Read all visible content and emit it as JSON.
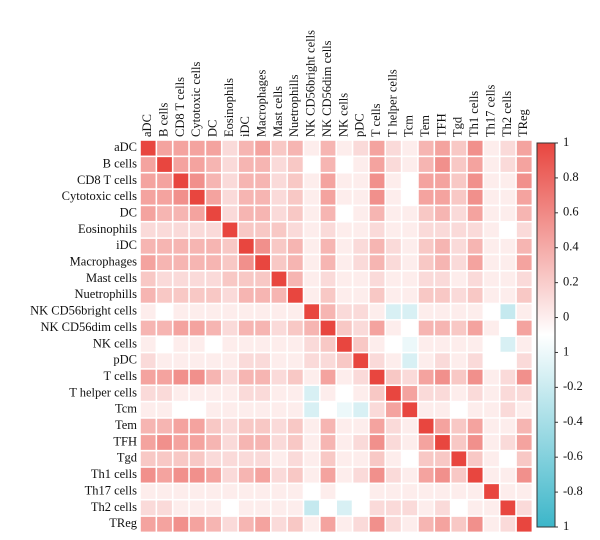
{
  "chart_data": {
    "type": "heatmap",
    "categories": [
      "aDC",
      "B cells",
      "CD8 T cells",
      "Cytotoxic cells",
      "DC",
      "Eosinophils",
      "iDC",
      "Macrophages",
      "Mast cells",
      "Nuetrophills",
      "NK CD56bright cells",
      "NK CD56dim cells",
      "NK cells",
      "pDC",
      "T cells",
      "T helper cells",
      "Tcm",
      "Tem",
      "TFH",
      "Tgd",
      "Th1 cells",
      "Th17 cells",
      "Th2 cells",
      "TReg"
    ],
    "values": [
      [
        1,
        0.5,
        0.5,
        0.5,
        0.5,
        0.2,
        0.4,
        0.5,
        0.3,
        0.4,
        0.1,
        0.4,
        0.1,
        0.2,
        0.5,
        0.2,
        0.1,
        0.4,
        0.5,
        0.3,
        0.6,
        0.1,
        0.2,
        0.5
      ],
      [
        0.5,
        1,
        0.5,
        0.5,
        0.4,
        0.2,
        0.4,
        0.4,
        0.2,
        0.3,
        0,
        0.4,
        0,
        0.1,
        0.5,
        0.2,
        0.1,
        0.4,
        0.6,
        0.3,
        0.5,
        0.1,
        0.2,
        0.5
      ],
      [
        0.5,
        0.5,
        1,
        0.6,
        0.4,
        0.2,
        0.4,
        0.4,
        0.2,
        0.3,
        0.1,
        0.5,
        0.1,
        0.1,
        0.6,
        0.1,
        0,
        0.5,
        0.5,
        0.3,
        0.6,
        0.1,
        0.1,
        0.6
      ],
      [
        0.5,
        0.5,
        0.6,
        1,
        0.5,
        0.2,
        0.4,
        0.4,
        0.2,
        0.3,
        0.1,
        0.5,
        0.1,
        0.1,
        0.6,
        0.1,
        0,
        0.5,
        0.5,
        0.3,
        0.6,
        0.1,
        0.1,
        0.5
      ],
      [
        0.5,
        0.4,
        0.4,
        0.5,
        1,
        0.2,
        0.4,
        0.4,
        0.2,
        0.3,
        0.1,
        0.4,
        0,
        0.1,
        0.4,
        0.1,
        0.1,
        0.3,
        0.4,
        0.2,
        0.5,
        0.1,
        0.1,
        0.4
      ],
      [
        0.2,
        0.2,
        0.2,
        0.2,
        0.2,
        1,
        0.3,
        0.3,
        0.3,
        0.2,
        0.1,
        0.2,
        0.1,
        0.1,
        0.2,
        0.1,
        0.1,
        0.2,
        0.2,
        0.2,
        0.2,
        0.1,
        0,
        0.2
      ],
      [
        0.4,
        0.4,
        0.4,
        0.4,
        0.4,
        0.3,
        1,
        0.6,
        0.3,
        0.4,
        0.1,
        0.4,
        0.1,
        0.2,
        0.4,
        0.2,
        0.1,
        0.3,
        0.4,
        0.2,
        0.4,
        0.1,
        0.1,
        0.4
      ],
      [
        0.5,
        0.4,
        0.4,
        0.4,
        0.4,
        0.3,
        0.6,
        1,
        0.3,
        0.4,
        0.1,
        0.4,
        0.1,
        0.2,
        0.4,
        0.2,
        0.1,
        0.3,
        0.4,
        0.2,
        0.5,
        0.1,
        0.1,
        0.5
      ],
      [
        0.3,
        0.2,
        0.2,
        0.2,
        0.2,
        0.3,
        0.3,
        0.3,
        1,
        0.4,
        0.1,
        0.2,
        0.1,
        0.1,
        0.2,
        0.1,
        0.1,
        0.2,
        0.2,
        0.1,
        0.2,
        0.1,
        0.1,
        0.2
      ],
      [
        0.4,
        0.3,
        0.3,
        0.3,
        0.3,
        0.2,
        0.4,
        0.4,
        0.4,
        1,
        0.1,
        0.3,
        0.1,
        0.1,
        0.3,
        0.1,
        0.1,
        0.3,
        0.3,
        0.2,
        0.3,
        0.1,
        0.1,
        0.3
      ],
      [
        0.1,
        0,
        0.1,
        0.1,
        0.1,
        0.1,
        0.1,
        0.1,
        0.1,
        0.1,
        1,
        0.4,
        0.2,
        0.2,
        0.1,
        -0.2,
        -0.2,
        0.1,
        0.1,
        0.1,
        0.1,
        0,
        -0.3,
        0.1
      ],
      [
        0.4,
        0.4,
        0.5,
        0.5,
        0.4,
        0.2,
        0.4,
        0.4,
        0.2,
        0.3,
        0.4,
        1,
        0.3,
        0.2,
        0.5,
        0.1,
        0,
        0.4,
        0.4,
        0.3,
        0.5,
        0.1,
        0,
        0.5
      ],
      [
        0.1,
        0,
        0.1,
        0.1,
        0,
        0.1,
        0.1,
        0.1,
        0.1,
        0.1,
        0.2,
        0.3,
        1,
        0.3,
        0.1,
        0,
        -0.1,
        0.1,
        0.1,
        0.1,
        0.1,
        0,
        -0.2,
        0.1
      ],
      [
        0.2,
        0.1,
        0.1,
        0.1,
        0.1,
        0.1,
        0.2,
        0.2,
        0.1,
        0.1,
        0.2,
        0.2,
        0.3,
        1,
        0.2,
        0.1,
        -0.2,
        0.1,
        0.2,
        0.1,
        0.2,
        0,
        0,
        0.2
      ],
      [
        0.5,
        0.5,
        0.6,
        0.6,
        0.4,
        0.2,
        0.4,
        0.4,
        0.2,
        0.3,
        0.1,
        0.5,
        0.1,
        0.2,
        1,
        0.3,
        0.2,
        0.5,
        0.6,
        0.3,
        0.6,
        0.1,
        0.2,
        0.6
      ],
      [
        0.2,
        0.2,
        0.1,
        0.1,
        0.1,
        0.1,
        0.2,
        0.2,
        0.1,
        0.1,
        -0.2,
        0.1,
        0,
        0.1,
        0.3,
        1,
        0.5,
        0.2,
        0.2,
        0.1,
        0.2,
        0.1,
        0.2,
        0.2
      ],
      [
        0.1,
        0.1,
        0,
        0,
        0.1,
        0.1,
        0.1,
        0.1,
        0.1,
        0.1,
        -0.2,
        0,
        -0.1,
        -0.2,
        0.2,
        0.5,
        1,
        0.1,
        0.1,
        0,
        0.1,
        0.1,
        0.2,
        0.1
      ],
      [
        0.4,
        0.4,
        0.5,
        0.5,
        0.3,
        0.2,
        0.3,
        0.3,
        0.2,
        0.3,
        0.1,
        0.4,
        0.1,
        0.1,
        0.5,
        0.2,
        0.1,
        1,
        0.5,
        0.3,
        0.5,
        0.1,
        0.1,
        0.4
      ],
      [
        0.5,
        0.6,
        0.5,
        0.5,
        0.4,
        0.2,
        0.4,
        0.4,
        0.2,
        0.3,
        0.1,
        0.4,
        0.1,
        0.2,
        0.6,
        0.2,
        0.1,
        0.5,
        1,
        0.3,
        0.6,
        0.1,
        0.2,
        0.5
      ],
      [
        0.3,
        0.3,
        0.3,
        0.3,
        0.2,
        0.2,
        0.2,
        0.2,
        0.1,
        0.2,
        0.1,
        0.3,
        0.1,
        0.1,
        0.3,
        0.1,
        0,
        0.3,
        0.3,
        1,
        0.3,
        0.1,
        0,
        0.3
      ],
      [
        0.6,
        0.5,
        0.6,
        0.6,
        0.5,
        0.2,
        0.4,
        0.5,
        0.2,
        0.3,
        0.1,
        0.5,
        0.1,
        0.2,
        0.6,
        0.2,
        0.1,
        0.5,
        0.6,
        0.3,
        1,
        0.1,
        0.1,
        0.6
      ],
      [
        0.1,
        0.1,
        0.1,
        0.1,
        0.1,
        0.1,
        0.1,
        0.1,
        0.1,
        0.1,
        0,
        0.1,
        0,
        0,
        0.1,
        0.1,
        0.1,
        0.1,
        0.1,
        0.1,
        0.1,
        1,
        0.1,
        0.1
      ],
      [
        0.2,
        0.2,
        0.1,
        0.1,
        0.1,
        0,
        0.1,
        0.1,
        0.1,
        0.1,
        -0.3,
        0,
        -0.2,
        0,
        0.2,
        0.2,
        0.2,
        0.1,
        0.2,
        0,
        0.1,
        0.1,
        1,
        0.2
      ],
      [
        0.5,
        0.5,
        0.6,
        0.5,
        0.4,
        0.2,
        0.4,
        0.5,
        0.2,
        0.3,
        0.1,
        0.5,
        0.1,
        0.2,
        0.6,
        0.2,
        0.1,
        0.4,
        0.5,
        0.3,
        0.6,
        0.1,
        0.2,
        1
      ]
    ],
    "clim": [
      -1,
      1
    ],
    "color_high": "#e8463f",
    "color_low": "#3cb6c9",
    "colorbar_lim": [
      -1.2,
      1
    ],
    "colorbar_ticks": [
      1,
      0.8,
      0.6,
      0.4,
      0.2,
      0,
      {
        "value": -0.2,
        "label": "1"
      },
      {
        "value": -0.4,
        "label": "-0.2"
      },
      {
        "value": -0.6,
        "label": "-0.4"
      },
      {
        "value": -0.8,
        "label": "-0.6"
      },
      {
        "value": -1,
        "label": "-0.8"
      },
      {
        "value": -1.2,
        "label": "1"
      }
    ]
  }
}
